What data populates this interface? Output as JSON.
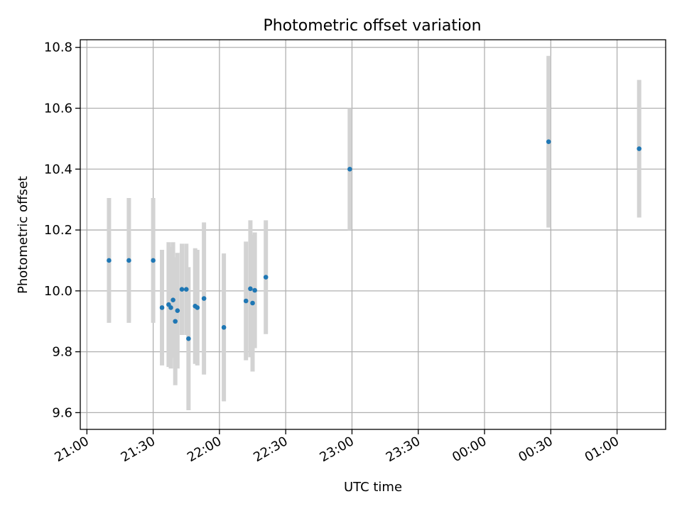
{
  "chart_data": {
    "type": "scatter",
    "title": "Photometric offset variation",
    "xlabel": "UTC time",
    "ylabel": "Photometric offset",
    "grid": true,
    "x_ticks": [
      "21:00",
      "21:30",
      "22:00",
      "22:30",
      "23:00",
      "23:30",
      "00:00",
      "00:30",
      "01:00"
    ],
    "y_ticks": [
      "9.6",
      "9.8",
      "10.0",
      "10.2",
      "10.4",
      "10.6",
      "10.8"
    ],
    "xlim": [
      "20:57",
      "01:22"
    ],
    "ylim": [
      9.545,
      10.825
    ],
    "colors": {
      "point": "#1f77b4",
      "errorbar": "#d3d3d3",
      "grid": "#b0b0b0"
    },
    "points": [
      {
        "x": "21:10",
        "y": 10.1,
        "err": 0.205
      },
      {
        "x": "21:19",
        "y": 10.1,
        "err": 0.205
      },
      {
        "x": "21:30",
        "y": 10.1,
        "err": 0.205
      },
      {
        "x": "21:34",
        "y": 9.945,
        "err": 0.19
      },
      {
        "x": "21:37",
        "y": 9.955,
        "err": 0.205
      },
      {
        "x": "21:38",
        "y": 9.945,
        "err": 0.2
      },
      {
        "x": "21:39",
        "y": 9.97,
        "err": 0.19
      },
      {
        "x": "21:40",
        "y": 9.9,
        "err": 0.21
      },
      {
        "x": "21:41",
        "y": 9.935,
        "err": 0.19
      },
      {
        "x": "21:43",
        "y": 10.005,
        "err": 0.15
      },
      {
        "x": "21:45",
        "y": 10.005,
        "err": 0.15
      },
      {
        "x": "21:46",
        "y": 9.843,
        "err": 0.235
      },
      {
        "x": "21:49",
        "y": 9.95,
        "err": 0.19
      },
      {
        "x": "21:50",
        "y": 9.945,
        "err": 0.19
      },
      {
        "x": "21:53",
        "y": 9.975,
        "err": 0.25
      },
      {
        "x": "22:02",
        "y": 9.88,
        "err": 0.243
      },
      {
        "x": "22:12",
        "y": 9.967,
        "err": 0.195
      },
      {
        "x": "22:14",
        "y": 10.007,
        "err": 0.225
      },
      {
        "x": "22:15",
        "y": 9.96,
        "err": 0.225
      },
      {
        "x": "22:16",
        "y": 10.002,
        "err": 0.19
      },
      {
        "x": "22:21",
        "y": 10.045,
        "err": 0.187
      },
      {
        "x": "22:59",
        "y": 10.4,
        "err": 0.2
      },
      {
        "x": "00:29",
        "y": 10.49,
        "err": 0.282
      },
      {
        "x": "01:10",
        "y": 10.467,
        "err": 0.226
      }
    ]
  }
}
